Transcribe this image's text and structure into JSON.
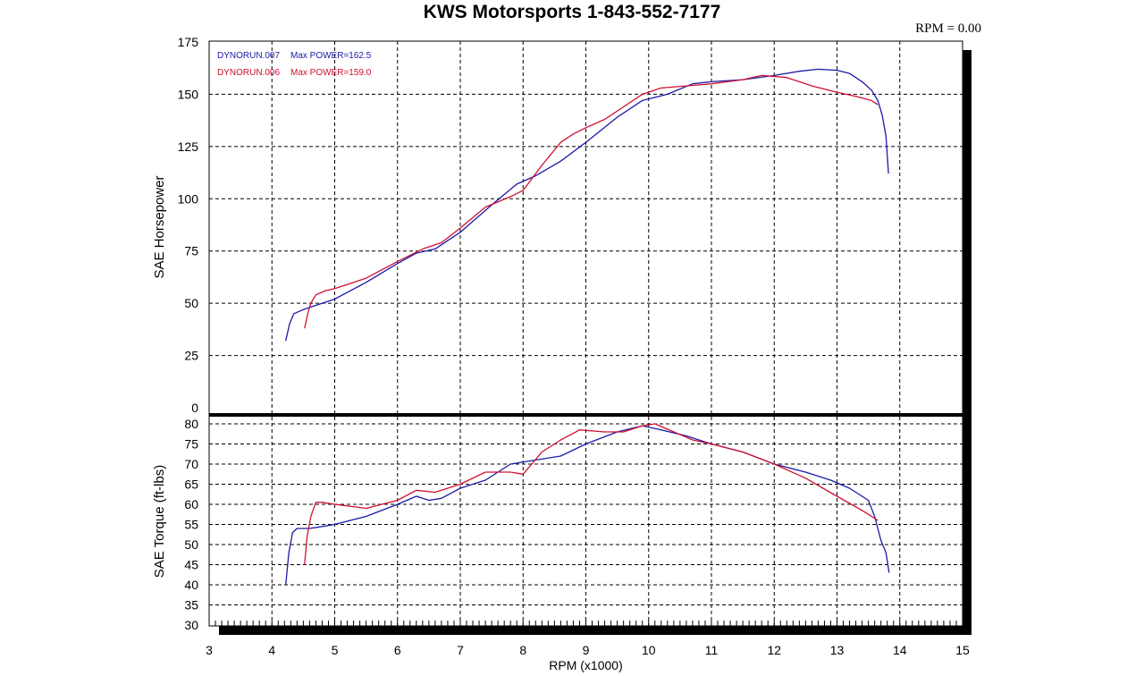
{
  "header": {
    "title": "KWS Motorsports 1-843-552-7177",
    "rpm_readout": "RPM = 0.00"
  },
  "chart_data": [
    {
      "type": "line",
      "panel": "horsepower",
      "ylabel": "SAE Horsepower",
      "xlabel": "",
      "xlim": [
        3,
        15
      ],
      "ylim": [
        0,
        175
      ],
      "x_ticks": [
        3,
        4,
        5,
        6,
        7,
        8,
        9,
        10,
        11,
        12,
        13,
        14,
        15
      ],
      "y_ticks": [
        0,
        25,
        50,
        75,
        100,
        125,
        150,
        175
      ],
      "grid": true,
      "legend": {
        "placement": "top-left",
        "entries": [
          {
            "name": "DYNORUN.007",
            "label": "Max POWER=162.5",
            "color": "#1a1aa6"
          },
          {
            "name": "DYNORUN.006",
            "label": "Max POWER=159.0",
            "color": "#d01030"
          }
        ]
      },
      "series": [
        {
          "name": "DYNORUN.007",
          "color": "#1a1aa6",
          "x": [
            4.22,
            4.28,
            4.35,
            4.5,
            4.7,
            5.0,
            5.5,
            6.0,
            6.3,
            6.6,
            7.0,
            7.5,
            7.9,
            8.2,
            8.6,
            9.0,
            9.5,
            9.9,
            10.3,
            10.7,
            11.0,
            11.5,
            12.0,
            12.4,
            12.7,
            13.0,
            13.2,
            13.4,
            13.55,
            13.65,
            13.72,
            13.78,
            13.82
          ],
          "y": [
            32,
            40,
            45,
            47,
            49,
            52,
            60,
            69,
            74,
            76,
            84,
            97,
            107,
            111,
            118,
            127,
            139,
            147,
            150,
            155,
            156,
            157,
            159,
            161,
            162,
            161.5,
            160,
            156,
            152,
            147,
            140,
            130,
            112
          ]
        },
        {
          "name": "DYNORUN.006",
          "color": "#d01030",
          "x": [
            4.52,
            4.57,
            4.62,
            4.7,
            4.85,
            5.0,
            5.5,
            6.0,
            6.4,
            6.7,
            7.0,
            7.4,
            7.8,
            8.0,
            8.3,
            8.6,
            8.8,
            9.0,
            9.3,
            9.6,
            9.9,
            10.2,
            10.6,
            11.0,
            11.5,
            11.8,
            12.2,
            12.6,
            13.0,
            13.3,
            13.55,
            13.65
          ],
          "y": [
            38,
            45,
            50,
            54,
            56,
            57,
            62,
            70,
            76,
            79,
            86,
            96,
            101,
            104,
            116,
            127,
            131,
            134,
            138,
            144,
            150,
            153,
            154,
            155,
            157,
            159,
            158,
            154,
            151,
            149,
            147,
            145
          ]
        }
      ]
    },
    {
      "type": "line",
      "panel": "torque",
      "ylabel": "SAE Torque (ft-lbs)",
      "xlabel": "RPM (x1000)",
      "xlim": [
        3,
        15
      ],
      "ylim": [
        30,
        80
      ],
      "x_ticks": [
        3,
        4,
        5,
        6,
        7,
        8,
        9,
        10,
        11,
        12,
        13,
        14,
        15
      ],
      "y_ticks": [
        30,
        35,
        40,
        45,
        50,
        55,
        60,
        65,
        70,
        75,
        80
      ],
      "grid": true,
      "series": [
        {
          "name": "DYNORUN.007",
          "color": "#1a1aa6",
          "x": [
            4.22,
            4.27,
            4.33,
            4.4,
            4.6,
            4.8,
            5.0,
            5.5,
            6.0,
            6.3,
            6.5,
            6.7,
            7.0,
            7.4,
            7.8,
            8.2,
            8.6,
            9.0,
            9.5,
            9.9,
            10.2,
            10.6,
            11.0,
            11.5,
            12.0,
            12.5,
            12.9,
            13.2,
            13.5,
            13.6,
            13.7,
            13.78,
            13.83
          ],
          "y": [
            40,
            48,
            53,
            54,
            54,
            54.5,
            55,
            57,
            60,
            62,
            61,
            61.5,
            64,
            66,
            70,
            71,
            72,
            75,
            78,
            79.5,
            78.5,
            77,
            75,
            73,
            70,
            68,
            66,
            64,
            61,
            57,
            51,
            48,
            43
          ]
        },
        {
          "name": "DYNORUN.006",
          "color": "#d01030",
          "x": [
            4.52,
            4.56,
            4.62,
            4.7,
            4.8,
            5.0,
            5.5,
            6.0,
            6.3,
            6.6,
            7.0,
            7.4,
            7.8,
            8.0,
            8.3,
            8.6,
            8.9,
            9.3,
            9.6,
            9.9,
            10.1,
            10.4,
            10.7,
            11.0,
            11.5,
            12.0,
            12.5,
            13.0,
            13.4,
            13.65
          ],
          "y": [
            45,
            52,
            57,
            60.5,
            60.5,
            60,
            59,
            61,
            63.5,
            63,
            65,
            68,
            68,
            67.5,
            73,
            76,
            78.5,
            78,
            78,
            79.5,
            80,
            78,
            76,
            75,
            73,
            70,
            66.5,
            62,
            58.5,
            56
          ]
        }
      ]
    }
  ]
}
